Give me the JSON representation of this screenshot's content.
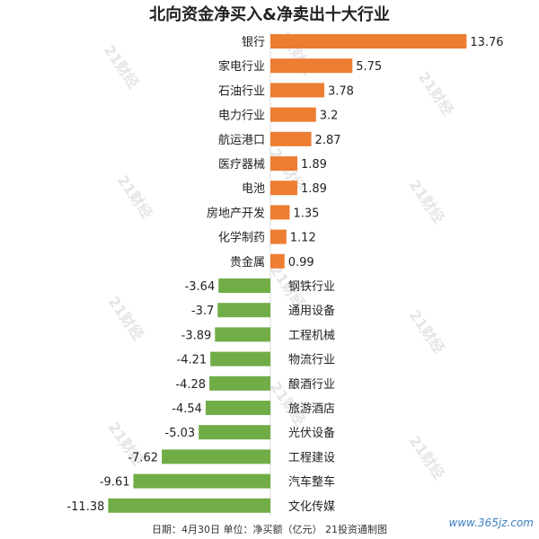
{
  "title": "北向资金净买入&净卖出十大行业",
  "footer": "日期：4月30日 单位：净买额（亿元） 21投资通制图",
  "source_mark": "www.365jz.com",
  "watermark_text": "21财经",
  "colors": {
    "positive": "#ed7d31",
    "negative": "#70ad47",
    "axis": "#d9d9d9"
  },
  "chart_data": {
    "type": "bar",
    "orientation": "horizontal",
    "title": "北向资金净买入&净卖出十大行业",
    "categories": [
      "银行",
      "家电行业",
      "石油行业",
      "电力行业",
      "航运港口",
      "医疗器械",
      "电池",
      "房地产开发",
      "化学制药",
      "贵金属",
      "钢铁行业",
      "通用设备",
      "工程机械",
      "物流行业",
      "酿酒行业",
      "旅游酒店",
      "光伏设备",
      "工程建设",
      "汽车整车",
      "文化传媒"
    ],
    "values": [
      13.76,
      5.75,
      3.78,
      3.2,
      2.87,
      1.89,
      1.89,
      1.35,
      1.12,
      0.99,
      -3.64,
      -3.7,
      -3.89,
      -4.21,
      -4.28,
      -4.54,
      -5.03,
      -7.62,
      -9.61,
      -11.38
    ],
    "value_labels": [
      "13.76",
      "5.75",
      "3.78",
      "3.2",
      "2.87",
      "1.89",
      "1.89",
      "1.35",
      "1.12",
      "0.99",
      "-3.64",
      "-3.7",
      "-3.89",
      "-4.21",
      "-4.28",
      "-4.54",
      "-5.03",
      "-7.62",
      "-9.61",
      "-11.38"
    ],
    "xlim": [
      -12,
      14
    ],
    "grid": false,
    "legend": "none"
  }
}
